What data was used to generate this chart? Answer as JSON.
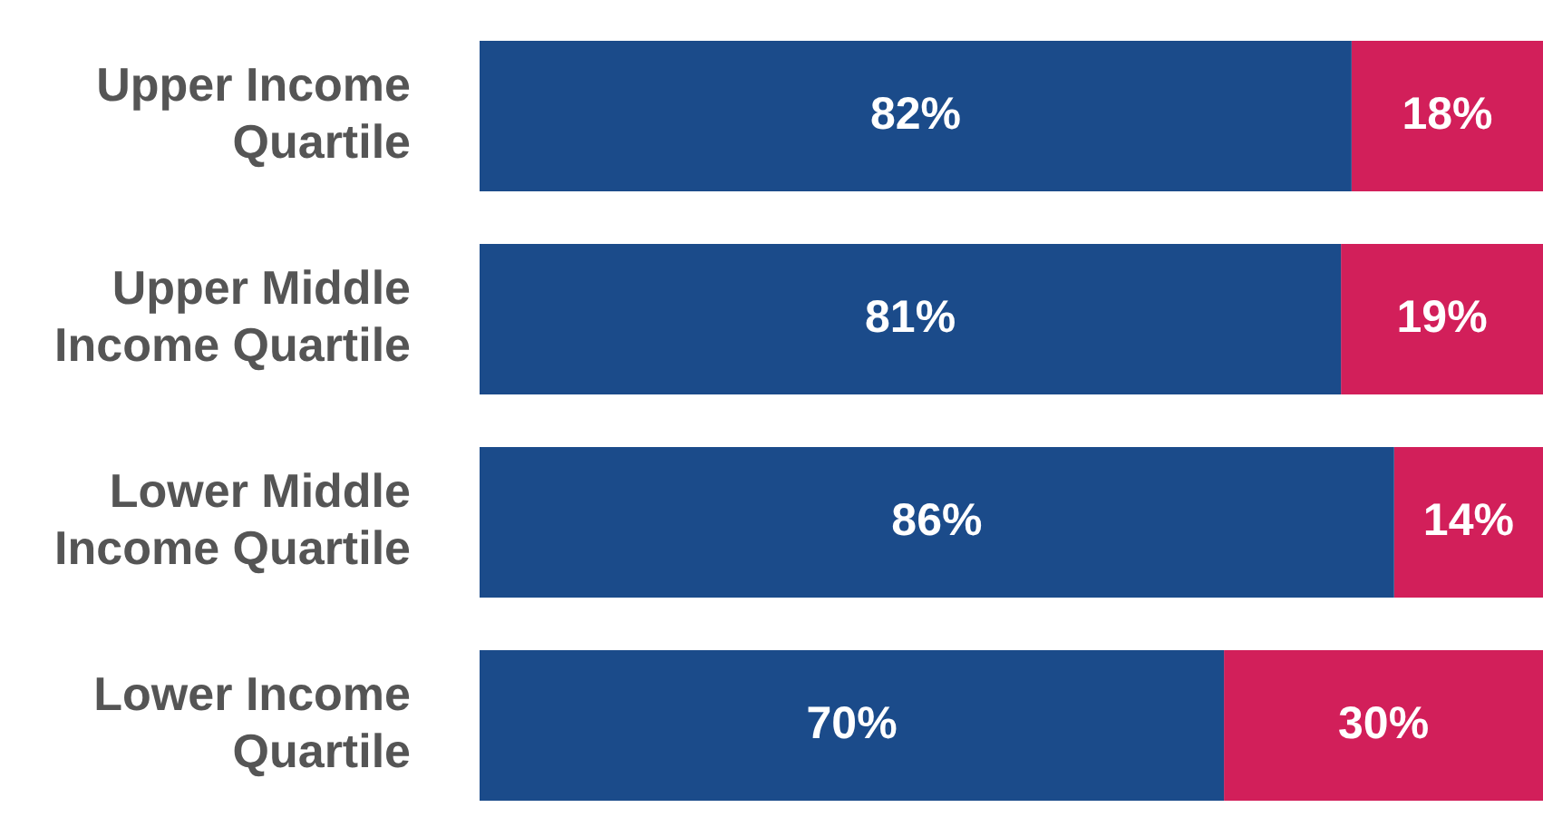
{
  "chart_data": {
    "type": "bar",
    "orientation": "horizontal",
    "stacked": true,
    "categories": [
      "Upper Income Quartile",
      "Upper Middle Income Quartile",
      "Lower Middle Income Quartile",
      "Lower Income Quartile"
    ],
    "series": [
      {
        "color": "#1b4b8a",
        "values": [
          82,
          81,
          86,
          70
        ],
        "value_labels": [
          "82%",
          "81%",
          "86%",
          "70%"
        ]
      },
      {
        "color": "#d21f5a",
        "values": [
          18,
          19,
          14,
          30
        ],
        "value_labels": [
          "18%",
          "19%",
          "14%",
          "30%"
        ]
      }
    ],
    "legend": false,
    "tick_labels": "y"
  }
}
